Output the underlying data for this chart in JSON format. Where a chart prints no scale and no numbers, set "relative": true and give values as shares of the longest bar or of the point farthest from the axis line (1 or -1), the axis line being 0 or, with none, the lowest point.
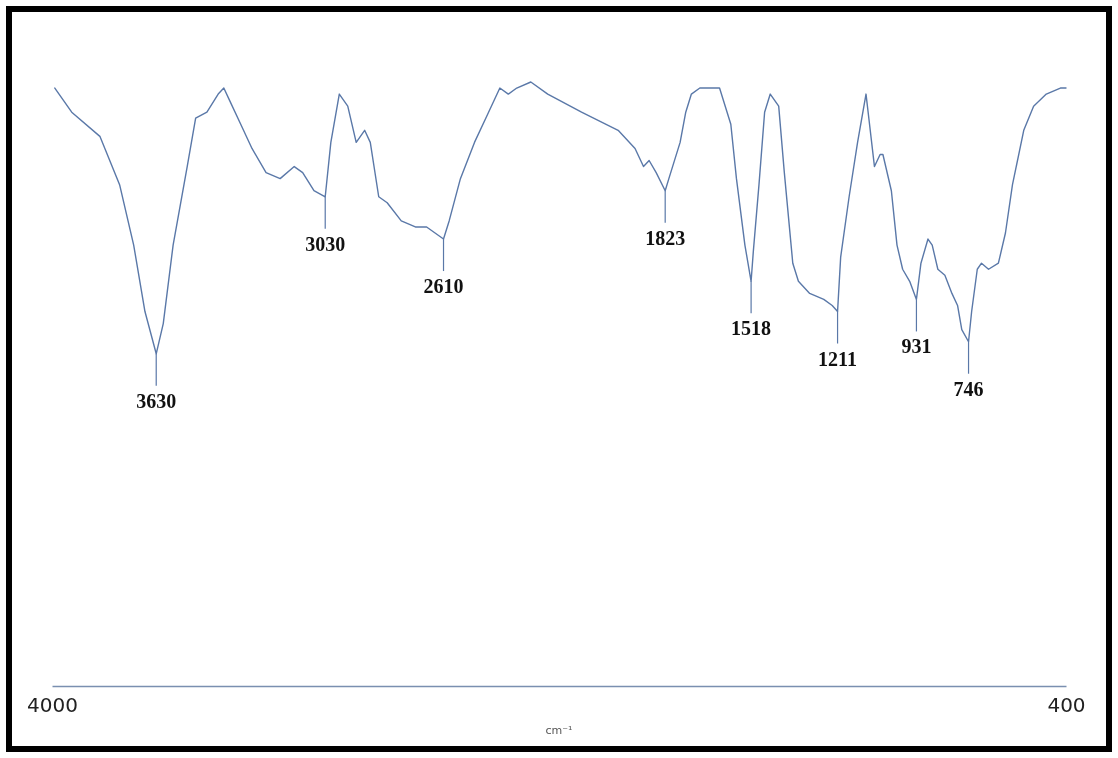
{
  "chart_data": {
    "type": "line",
    "relative": true,
    "xlim": [
      4000,
      400
    ],
    "xticks": [
      4000,
      400
    ],
    "xlabel": "cm⁻¹",
    "series": [
      {
        "color": "#5a78a8",
        "x": [
          3990,
          3930,
          3830,
          3760,
          3710,
          3670,
          3630,
          3605,
          3570,
          3520,
          3490,
          3450,
          3410,
          3390,
          3370,
          3330,
          3290,
          3240,
          3190,
          3140,
          3110,
          3070,
          3030,
          3010,
          2980,
          2950,
          2920,
          2890,
          2870,
          2840,
          2810,
          2760,
          2710,
          2670,
          2610,
          2590,
          2550,
          2500,
          2450,
          2410,
          2380,
          2350,
          2300,
          2240,
          2120,
          1990,
          1930,
          1900,
          1880,
          1855,
          1823,
          1810,
          1770,
          1750,
          1730,
          1700,
          1660,
          1630,
          1590,
          1570,
          1540,
          1518,
          1510,
          1490,
          1470,
          1450,
          1420,
          1400,
          1370,
          1350,
          1310,
          1260,
          1230,
          1211,
          1200,
          1170,
          1140,
          1110,
          1100,
          1080,
          1060,
          1050,
          1020,
          1000,
          980,
          955,
          931,
          915,
          890,
          875,
          855,
          830,
          805,
          785,
          770,
          746,
          735,
          715,
          700,
          675,
          640,
          615,
          590,
          550,
          515,
          470,
          420,
          400
        ],
        "values": [
          0.99,
          0.95,
          0.91,
          0.83,
          0.73,
          0.62,
          0.55,
          0.6,
          0.73,
          0.86,
          0.94,
          0.95,
          0.98,
          0.99,
          0.97,
          0.93,
          0.89,
          0.85,
          0.84,
          0.86,
          0.85,
          0.82,
          0.81,
          0.9,
          0.98,
          0.96,
          0.9,
          0.92,
          0.9,
          0.81,
          0.8,
          0.77,
          0.76,
          0.76,
          0.74,
          0.77,
          0.84,
          0.9,
          0.95,
          0.99,
          0.98,
          0.99,
          1,
          0.98,
          0.95,
          0.92,
          0.89,
          0.86,
          0.87,
          0.85,
          0.82,
          0.84,
          0.9,
          0.95,
          0.98,
          0.99,
          0.99,
          0.99,
          0.93,
          0.84,
          0.73,
          0.67,
          0.72,
          0.83,
          0.95,
          0.98,
          0.96,
          0.85,
          0.7,
          0.67,
          0.65,
          0.64,
          0.63,
          0.62,
          0.71,
          0.81,
          0.9,
          0.98,
          0.94,
          0.86,
          0.88,
          0.88,
          0.82,
          0.73,
          0.69,
          0.67,
          0.64,
          0.7,
          0.74,
          0.73,
          0.69,
          0.68,
          0.65,
          0.63,
          0.59,
          0.57,
          0.62,
          0.69,
          0.7,
          0.69,
          0.7,
          0.75,
          0.83,
          0.92,
          0.96,
          0.98,
          0.99,
          0.99
        ]
      }
    ],
    "annotations": [
      {
        "text": "3630",
        "x": 3630,
        "y": 0.55
      },
      {
        "text": "3030",
        "x": 3030,
        "y": 0.81
      },
      {
        "text": "2610",
        "x": 2610,
        "y": 0.74
      },
      {
        "text": "1823",
        "x": 1823,
        "y": 0.82
      },
      {
        "text": "1518",
        "x": 1518,
        "y": 0.67
      },
      {
        "text": "1211",
        "x": 1211,
        "y": 0.62
      },
      {
        "text": "931",
        "x": 931,
        "y": 0.64
      },
      {
        "text": "746",
        "x": 746,
        "y": 0.57
      }
    ]
  }
}
